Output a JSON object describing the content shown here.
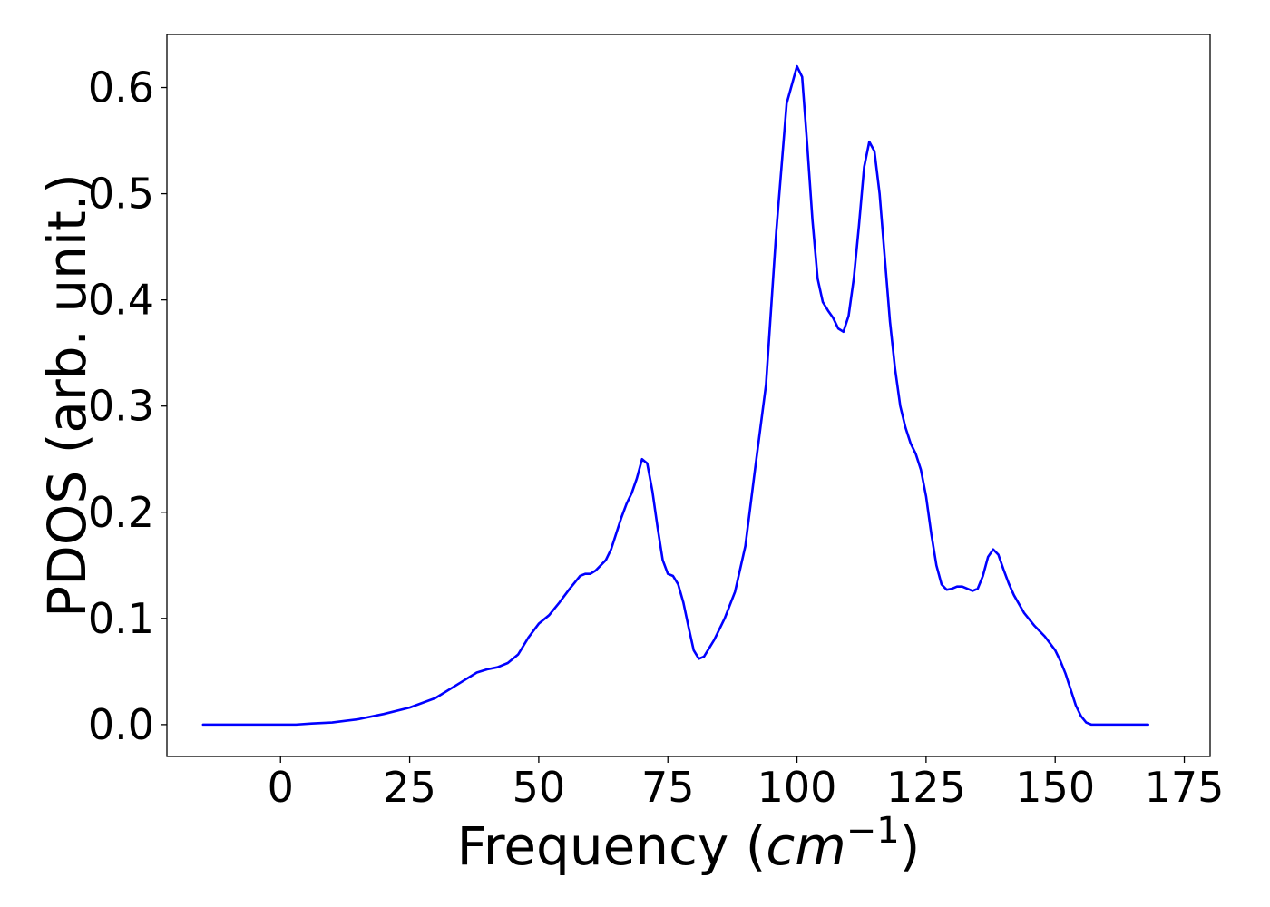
{
  "chart_data": {
    "type": "line",
    "title": "",
    "xlabel_prefix": "Frequency (",
    "xlabel_math": "cm",
    "xlabel_sup": "−1",
    "xlabel_suffix": ")",
    "ylabel": "PDOS (arb. unit.)",
    "xlim": [
      -22,
      180
    ],
    "ylim": [
      -0.03,
      0.65
    ],
    "xticks": [
      0,
      25,
      50,
      75,
      100,
      125,
      150,
      175
    ],
    "xtick_labels": [
      "0",
      "25",
      "50",
      "75",
      "100",
      "125",
      "150",
      "175"
    ],
    "yticks": [
      0.0,
      0.1,
      0.2,
      0.3,
      0.4,
      0.5,
      0.6
    ],
    "ytick_labels": [
      "0.0",
      "0.1",
      "0.2",
      "0.3",
      "0.4",
      "0.5",
      "0.6"
    ],
    "grid": false,
    "series": [
      {
        "color": "#0000ff",
        "x": [
          -15,
          -10,
          -5,
          0,
          3,
          6,
          10,
          15,
          20,
          25,
          30,
          35,
          38,
          40,
          42,
          44,
          46,
          48,
          50,
          52,
          54,
          56,
          58,
          59,
          60,
          61,
          62,
          63,
          64,
          65,
          66,
          67,
          68,
          69,
          70,
          71,
          72,
          73,
          74,
          75,
          76,
          77,
          78,
          79,
          80,
          81,
          82,
          83,
          84,
          86,
          88,
          90,
          92,
          94,
          96,
          98,
          100,
          101,
          102,
          103,
          104,
          105,
          106,
          107,
          108,
          109,
          110,
          111,
          112,
          113,
          114,
          115,
          116,
          117,
          118,
          119,
          120,
          121,
          122,
          123,
          124,
          125,
          126,
          127,
          128,
          129,
          130,
          131,
          132,
          133,
          134,
          135,
          136,
          137,
          138,
          139,
          140,
          141,
          142,
          144,
          146,
          148,
          150,
          151,
          152,
          153,
          154,
          155,
          156,
          157,
          160,
          165,
          168
        ],
        "y": [
          0.0,
          0.0,
          0.0,
          0.0,
          0.0,
          0.001,
          0.002,
          0.005,
          0.01,
          0.016,
          0.025,
          0.04,
          0.049,
          0.052,
          0.054,
          0.058,
          0.066,
          0.082,
          0.095,
          0.103,
          0.115,
          0.128,
          0.14,
          0.142,
          0.142,
          0.145,
          0.15,
          0.155,
          0.165,
          0.18,
          0.195,
          0.208,
          0.218,
          0.232,
          0.25,
          0.246,
          0.22,
          0.186,
          0.155,
          0.142,
          0.14,
          0.132,
          0.115,
          0.092,
          0.07,
          0.062,
          0.064,
          0.072,
          0.08,
          0.1,
          0.125,
          0.168,
          0.245,
          0.32,
          0.465,
          0.585,
          0.62,
          0.61,
          0.545,
          0.475,
          0.42,
          0.398,
          0.39,
          0.383,
          0.373,
          0.37,
          0.385,
          0.42,
          0.47,
          0.525,
          0.549,
          0.54,
          0.5,
          0.44,
          0.38,
          0.335,
          0.3,
          0.28,
          0.265,
          0.255,
          0.24,
          0.215,
          0.18,
          0.15,
          0.132,
          0.127,
          0.128,
          0.13,
          0.13,
          0.128,
          0.126,
          0.128,
          0.14,
          0.158,
          0.165,
          0.16,
          0.146,
          0.133,
          0.122,
          0.105,
          0.093,
          0.083,
          0.07,
          0.06,
          0.048,
          0.033,
          0.018,
          0.008,
          0.002,
          0.0,
          0.0,
          0.0,
          0.0
        ]
      }
    ]
  }
}
